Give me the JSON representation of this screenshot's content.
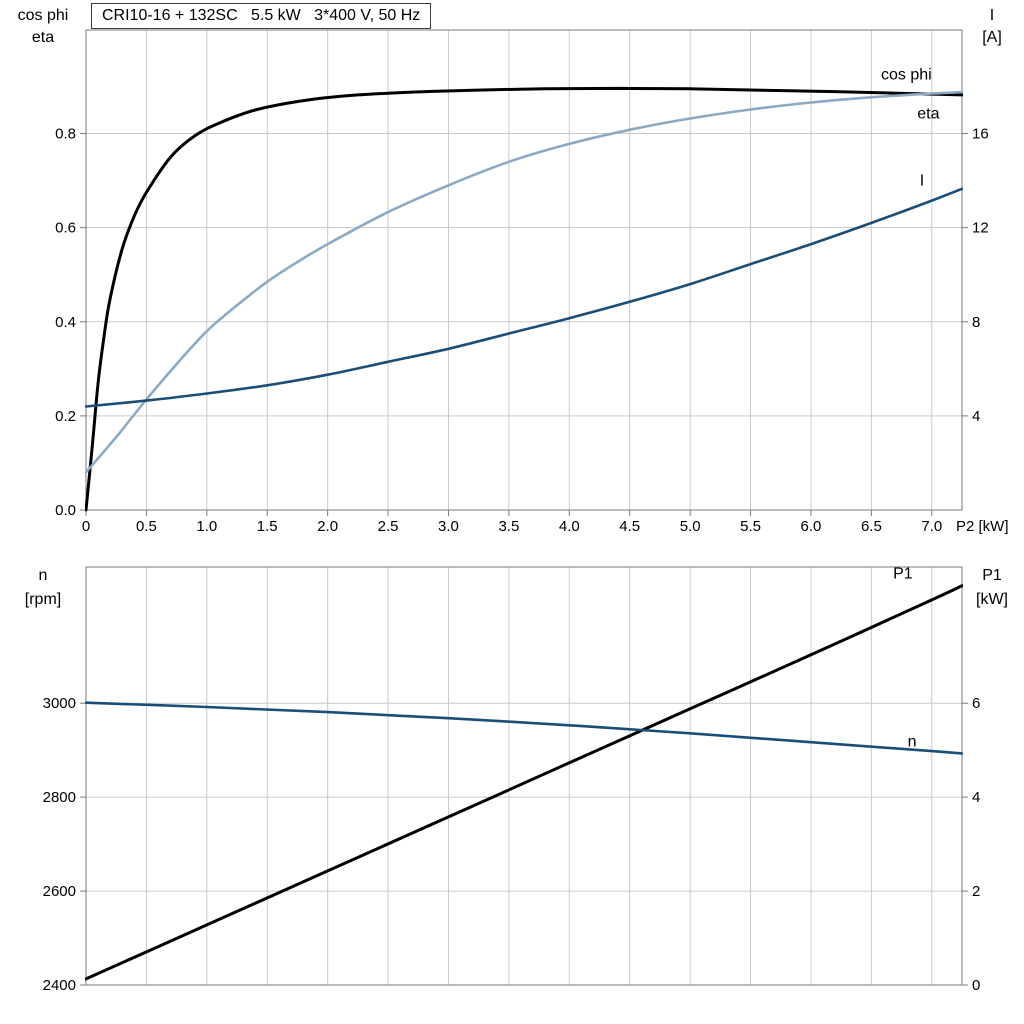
{
  "style": {
    "grid_color": "#c9c9c9",
    "frame_color": "#7a7a7a",
    "background": "#ffffff",
    "black": "#000000",
    "dark_blue": "#1A4E78",
    "light_blue": "#8CA9C4"
  },
  "chart_data": [
    {
      "type": "line",
      "title": "CRI10-16 + 132SC   5.5 kW   3*400 V, 50 Hz",
      "x": {
        "lim": [
          0,
          7.25
        ],
        "ticks": [
          0,
          0.5,
          1,
          1.5,
          2,
          2.5,
          3,
          3.5,
          4,
          4.5,
          5,
          5.5,
          6,
          6.5,
          7
        ],
        "tick_labels": [
          "0",
          "0.5",
          "1.0",
          "1.5",
          "2.0",
          "2.5",
          "3.0",
          "3.5",
          "4.0",
          "4.5",
          "5.0",
          "5.5",
          "6.0",
          "6.5",
          "7.0"
        ],
        "label": "P2 [kW]",
        "show_labels": true
      },
      "left_axis": {
        "lim": [
          0,
          1.02
        ],
        "ticks": [
          0,
          0.2,
          0.4,
          0.6,
          0.8
        ],
        "tick_labels": [
          "0.0",
          "0.2",
          "0.4",
          "0.6",
          "0.8"
        ],
        "title_lines": [
          "cos phi",
          "eta"
        ],
        "grid": true
      },
      "right_axis": {
        "lim": [
          0,
          20.4
        ],
        "ticks": [
          4,
          8,
          12,
          16
        ],
        "tick_labels": [
          "4",
          "8",
          "12",
          "16"
        ],
        "title_lines": [
          "I",
          "[A]"
        ]
      },
      "series": [
        {
          "id": "eta",
          "name": "eta",
          "axis": "left",
          "color": "#000000",
          "width": 3,
          "x": [
            0,
            0.05,
            0.1,
            0.15,
            0.2,
            0.3,
            0.4,
            0.5,
            0.7,
            0.9,
            1.1,
            1.4,
            1.8,
            2.2,
            2.7,
            3.2,
            3.8,
            4.4,
            5.0,
            5.6,
            6.2,
            6.8,
            7.25
          ],
          "y": [
            0.0,
            0.13,
            0.27,
            0.37,
            0.45,
            0.555,
            0.625,
            0.675,
            0.75,
            0.795,
            0.822,
            0.85,
            0.87,
            0.881,
            0.888,
            0.892,
            0.895,
            0.896,
            0.895,
            0.892,
            0.889,
            0.885,
            0.882
          ],
          "label": {
            "text": "eta",
            "x": 6.88,
            "y": 0.832
          }
        },
        {
          "id": "cos-phi",
          "name": "cos phi",
          "axis": "left",
          "color": "#8CA9C4",
          "width": 2.6,
          "x": [
            0,
            0.25,
            0.5,
            0.75,
            1.0,
            1.25,
            1.5,
            1.75,
            2.0,
            2.5,
            3.0,
            3.5,
            4.0,
            4.5,
            5.0,
            5.5,
            6.0,
            6.5,
            7.0,
            7.25
          ],
          "y": [
            0.08,
            0.155,
            0.235,
            0.31,
            0.38,
            0.435,
            0.485,
            0.527,
            0.565,
            0.633,
            0.69,
            0.74,
            0.778,
            0.808,
            0.832,
            0.851,
            0.866,
            0.877,
            0.885,
            0.888
          ],
          "label": {
            "text": "cos phi",
            "x": 6.58,
            "y": 0.915
          }
        },
        {
          "id": "current",
          "name": "I",
          "axis": "right",
          "color": "#1A4E78",
          "width": 2.6,
          "x": [
            0,
            0.5,
            1.0,
            1.5,
            2.0,
            2.5,
            3.0,
            3.5,
            4.0,
            4.5,
            5.0,
            5.5,
            6.0,
            6.5,
            7.0,
            7.25
          ],
          "y": [
            4.4,
            4.65,
            4.95,
            5.3,
            5.75,
            6.3,
            6.85,
            7.5,
            8.15,
            8.85,
            9.6,
            10.45,
            11.3,
            12.2,
            13.15,
            13.65
          ],
          "label": {
            "text": "I",
            "x": 6.9,
            "y": 13.8
          }
        }
      ]
    },
    {
      "type": "line",
      "title": "",
      "x": {
        "lim": [
          0,
          7.25
        ],
        "ticks": [
          0,
          0.5,
          1,
          1.5,
          2,
          2.5,
          3,
          3.5,
          4,
          4.5,
          5,
          5.5,
          6,
          6.5,
          7
        ],
        "tick_labels": [],
        "label": "",
        "show_labels": false
      },
      "left_axis": {
        "lim": [
          2400,
          3290
        ],
        "ticks": [
          2400,
          2600,
          2800,
          3000
        ],
        "tick_labels": [
          "2400",
          "2600",
          "2800",
          "3000"
        ],
        "title_lines": [
          "n",
          "[rpm]"
        ],
        "grid": true
      },
      "right_axis": {
        "lim": [
          0,
          8.9
        ],
        "ticks": [
          0,
          2,
          4,
          6
        ],
        "tick_labels": [
          "0",
          "2",
          "4",
          "6"
        ],
        "title_lines": [
          "P1",
          "[kW]"
        ]
      },
      "series": [
        {
          "id": "p1",
          "name": "P1",
          "axis": "right",
          "color": "#000000",
          "width": 3,
          "x": [
            0,
            1,
            2,
            3,
            4,
            5,
            6,
            7,
            7.25
          ],
          "y": [
            0.13,
            1.28,
            2.43,
            3.58,
            4.73,
            5.88,
            7.03,
            8.2,
            8.5
          ],
          "label": {
            "text": "P1",
            "x": 6.68,
            "y": 8.65
          }
        },
        {
          "id": "speed",
          "name": "n",
          "axis": "left",
          "color": "#1A4E78",
          "width": 2.6,
          "x": [
            0,
            1,
            2,
            3,
            4,
            5,
            6,
            7,
            7.25
          ],
          "y": [
            3001,
            2992,
            2981,
            2968,
            2953,
            2936,
            2917,
            2898,
            2893
          ],
          "label": {
            "text": "n",
            "x": 6.8,
            "y": 2908
          }
        }
      ]
    }
  ]
}
